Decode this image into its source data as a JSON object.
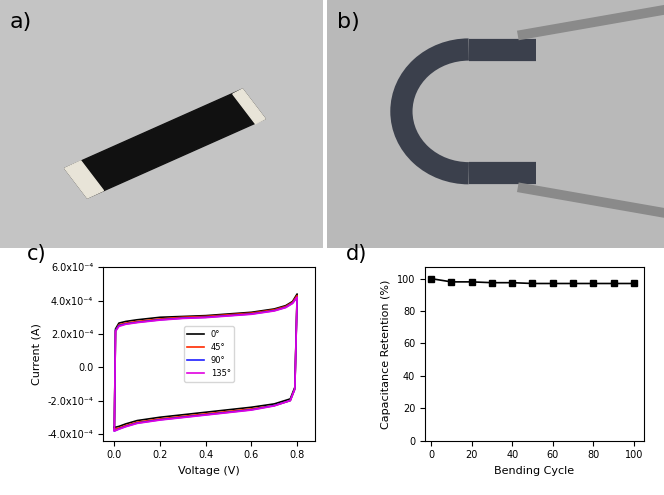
{
  "photos": [
    {
      "label": "a)"
    },
    {
      "label": "b)"
    }
  ],
  "chart_data": [
    {
      "type": "line",
      "title": "c)",
      "x_label": "Voltage (V)",
      "y_label": "Current (A)",
      "x": [
        0.0,
        0.005,
        0.02,
        0.05,
        0.1,
        0.2,
        0.3,
        0.4,
        0.5,
        0.6,
        0.7,
        0.75,
        0.78,
        0.8,
        0.8,
        0.79,
        0.77,
        0.7,
        0.6,
        0.5,
        0.4,
        0.3,
        0.2,
        0.1,
        0.05,
        0.02,
        0.005,
        0.0
      ],
      "series": [
        {
          "name": "0°",
          "color": "#000000",
          "values": [
            -0.00036,
            0.00023,
            0.000265,
            0.000275,
            0.000285,
            0.0003,
            0.000305,
            0.00031,
            0.00032,
            0.00033,
            0.00035,
            0.00037,
            0.000395,
            0.00044,
            0.00044,
            -0.00012,
            -0.00019,
            -0.00022,
            -0.00024,
            -0.000255,
            -0.00027,
            -0.000285,
            -0.0003,
            -0.00032,
            -0.00034,
            -0.000355,
            -0.00036,
            -0.00036
          ]
        },
        {
          "name": "45°",
          "color": "#ff2a00",
          "values": [
            -0.00037,
            0.00022,
            0.000255,
            0.000265,
            0.000275,
            0.00029,
            0.0003,
            0.000305,
            0.000315,
            0.000325,
            0.000345,
            0.000365,
            0.00039,
            0.00043,
            0.00043,
            -0.00013,
            -0.0002,
            -0.00023,
            -0.00025,
            -0.000265,
            -0.00028,
            -0.000295,
            -0.00031,
            -0.00033,
            -0.00035,
            -0.000365,
            -0.00037,
            -0.00037
          ]
        },
        {
          "name": "90°",
          "color": "#1f1fff",
          "values": [
            -0.00038,
            0.00022,
            0.00025,
            0.00026,
            0.00027,
            0.000285,
            0.000295,
            0.0003,
            0.00031,
            0.00032,
            0.00034,
            0.00036,
            0.000385,
            0.00042,
            0.00042,
            -0.00013,
            -0.0002,
            -0.00023,
            -0.000255,
            -0.00027,
            -0.000285,
            -0.0003,
            -0.000315,
            -0.000335,
            -0.000355,
            -0.00037,
            -0.00038,
            -0.00038
          ]
        },
        {
          "name": "135°",
          "color": "#e000e0",
          "values": [
            -0.00038,
            0.000215,
            0.000245,
            0.000258,
            0.000268,
            0.000283,
            0.000293,
            0.000298,
            0.000308,
            0.000318,
            0.000338,
            0.000358,
            0.000383,
            0.00042,
            0.00042,
            -0.00013,
            -0.0002,
            -0.000232,
            -0.000257,
            -0.000272,
            -0.000287,
            -0.000302,
            -0.000317,
            -0.000337,
            -0.000357,
            -0.000372,
            -0.00038,
            -0.00038
          ]
        }
      ],
      "line_style": "solid",
      "marker": "none",
      "legend": "center",
      "xlim": [
        -0.05,
        0.88
      ],
      "xticks": [
        0.0,
        0.2,
        0.4,
        0.6,
        0.8
      ],
      "ylim": [
        -0.00044,
        0.0006
      ],
      "yticks": [
        {
          "value": -0.0004,
          "label": "-4.0x10⁻⁴"
        },
        {
          "value": -0.0002,
          "label": "-2.0x10⁻⁴"
        },
        {
          "value": 0.0,
          "label": "0.0"
        },
        {
          "value": 0.0002,
          "label": "2.0x10⁻⁴"
        },
        {
          "value": 0.0004,
          "label": "4.0x10⁻⁴"
        },
        {
          "value": 0.0006,
          "label": "6.0x10⁻⁴"
        }
      ]
    },
    {
      "type": "line",
      "title": "d)",
      "x_label": "Bending Cycle",
      "y_label": "Capacitance Retention (%)",
      "x": [
        0,
        10,
        20,
        30,
        40,
        50,
        60,
        70,
        80,
        90,
        100
      ],
      "series": [
        {
          "color": "#000000",
          "values": [
            100,
            98,
            98,
            97.5,
            97.5,
            97,
            97,
            97,
            97,
            97,
            97
          ]
        }
      ],
      "line_style": "solid",
      "marker": "square",
      "xlim": [
        -3,
        105
      ],
      "xticks": [
        0,
        20,
        40,
        60,
        80,
        100
      ],
      "ylim": [
        0,
        107
      ],
      "yticks": [
        0,
        20,
        40,
        60,
        80,
        100
      ]
    }
  ]
}
